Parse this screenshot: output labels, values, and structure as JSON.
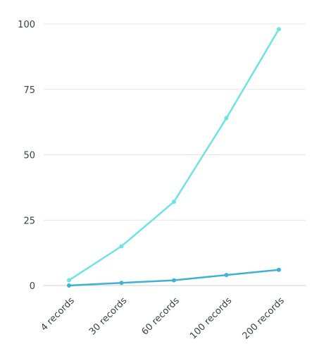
{
  "chart_data": {
    "type": "line",
    "title": "",
    "xlabel": "",
    "ylabel": "",
    "categories": [
      "4 records",
      "30 records",
      "60 records",
      "100 records",
      "200 records"
    ],
    "ylim": [
      0,
      100
    ],
    "yticks": [
      "0",
      "25",
      "50",
      "75",
      "100"
    ],
    "grid": true,
    "legend": "none",
    "series": [
      {
        "color": "#6ee3e6",
        "values": [
          2,
          15,
          32,
          64,
          98
        ]
      },
      {
        "color": "#3db3d3",
        "values": [
          0,
          1,
          2,
          4,
          6
        ]
      }
    ]
  }
}
